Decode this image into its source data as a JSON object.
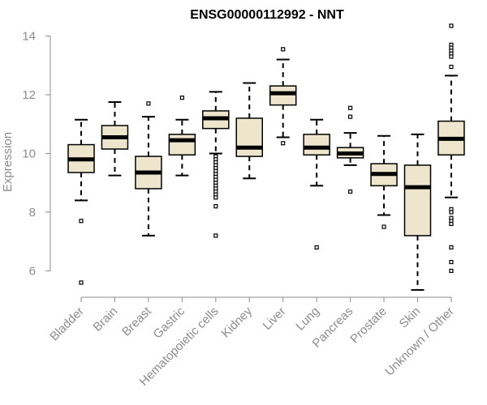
{
  "chart_data": {
    "type": "boxplot",
    "title": "ENSG00000112992 - NNT",
    "xlabel": "",
    "ylabel": "Expression",
    "ylim": [
      5.1,
      14.4
    ],
    "yticks": [
      6,
      8,
      10,
      12,
      14
    ],
    "colors": {
      "box_fill": "#ede6cc",
      "stroke": "#000000",
      "axis_text": "#8c8c8c"
    },
    "categories": [
      "Bladder",
      "Brain",
      "Breast",
      "Gastric",
      "Hematopoietic cells",
      "Kidney",
      "Liver",
      "Lung",
      "Pancreas",
      "Prostate",
      "Skin",
      "Unknown / Other"
    ],
    "boxes": [
      {
        "name": "Bladder",
        "q1": 9.35,
        "median": 9.8,
        "q3": 10.3,
        "whisker_low": 8.4,
        "whisker_high": 11.15,
        "outliers": [
          7.7,
          5.6
        ]
      },
      {
        "name": "Brain",
        "q1": 10.15,
        "median": 10.55,
        "q3": 10.95,
        "whisker_low": 9.25,
        "whisker_high": 11.75,
        "outliers": []
      },
      {
        "name": "Breast",
        "q1": 8.8,
        "median": 9.35,
        "q3": 9.9,
        "whisker_low": 7.2,
        "whisker_high": 11.25,
        "outliers": [
          11.7
        ]
      },
      {
        "name": "Gastric",
        "q1": 9.95,
        "median": 10.45,
        "q3": 10.65,
        "whisker_low": 9.25,
        "whisker_high": 11.15,
        "outliers": [
          11.9
        ]
      },
      {
        "name": "Hematopoietic cells",
        "q1": 10.85,
        "median": 11.2,
        "q3": 11.45,
        "whisker_low": 10.0,
        "whisker_high": 12.1,
        "outliers": [
          9.9,
          9.8,
          9.7,
          9.6,
          9.5,
          9.4,
          9.3,
          9.2,
          9.1,
          9.0,
          8.9,
          8.8,
          8.7,
          8.6,
          8.5,
          8.2,
          7.2
        ]
      },
      {
        "name": "Kidney",
        "q1": 9.9,
        "median": 10.2,
        "q3": 11.2,
        "whisker_low": 9.15,
        "whisker_high": 12.4,
        "outliers": []
      },
      {
        "name": "Liver",
        "q1": 11.65,
        "median": 12.05,
        "q3": 12.3,
        "whisker_low": 10.55,
        "whisker_high": 13.2,
        "outliers": [
          13.55,
          10.35
        ]
      },
      {
        "name": "Lung",
        "q1": 9.95,
        "median": 10.2,
        "q3": 10.65,
        "whisker_low": 8.9,
        "whisker_high": 11.15,
        "outliers": [
          6.8
        ]
      },
      {
        "name": "Pancreas",
        "q1": 9.85,
        "median": 10.0,
        "q3": 10.2,
        "whisker_low": 9.6,
        "whisker_high": 10.7,
        "outliers": [
          11.55,
          11.25,
          8.7
        ]
      },
      {
        "name": "Prostate",
        "q1": 8.9,
        "median": 9.3,
        "q3": 9.65,
        "whisker_low": 7.9,
        "whisker_high": 10.6,
        "outliers": [
          7.5
        ]
      },
      {
        "name": "Skin",
        "q1": 7.2,
        "median": 8.85,
        "q3": 9.6,
        "whisker_low": 5.35,
        "whisker_high": 10.65,
        "outliers": []
      },
      {
        "name": "Unknown / Other",
        "q1": 9.95,
        "median": 10.5,
        "q3": 11.1,
        "whisker_low": 8.5,
        "whisker_high": 12.65,
        "outliers": [
          14.35,
          13.7,
          13.6,
          13.5,
          13.4,
          13.3,
          12.95,
          8.1,
          8.0,
          7.8,
          7.7,
          7.6,
          6.8,
          6.3,
          6.0
        ]
      }
    ]
  }
}
